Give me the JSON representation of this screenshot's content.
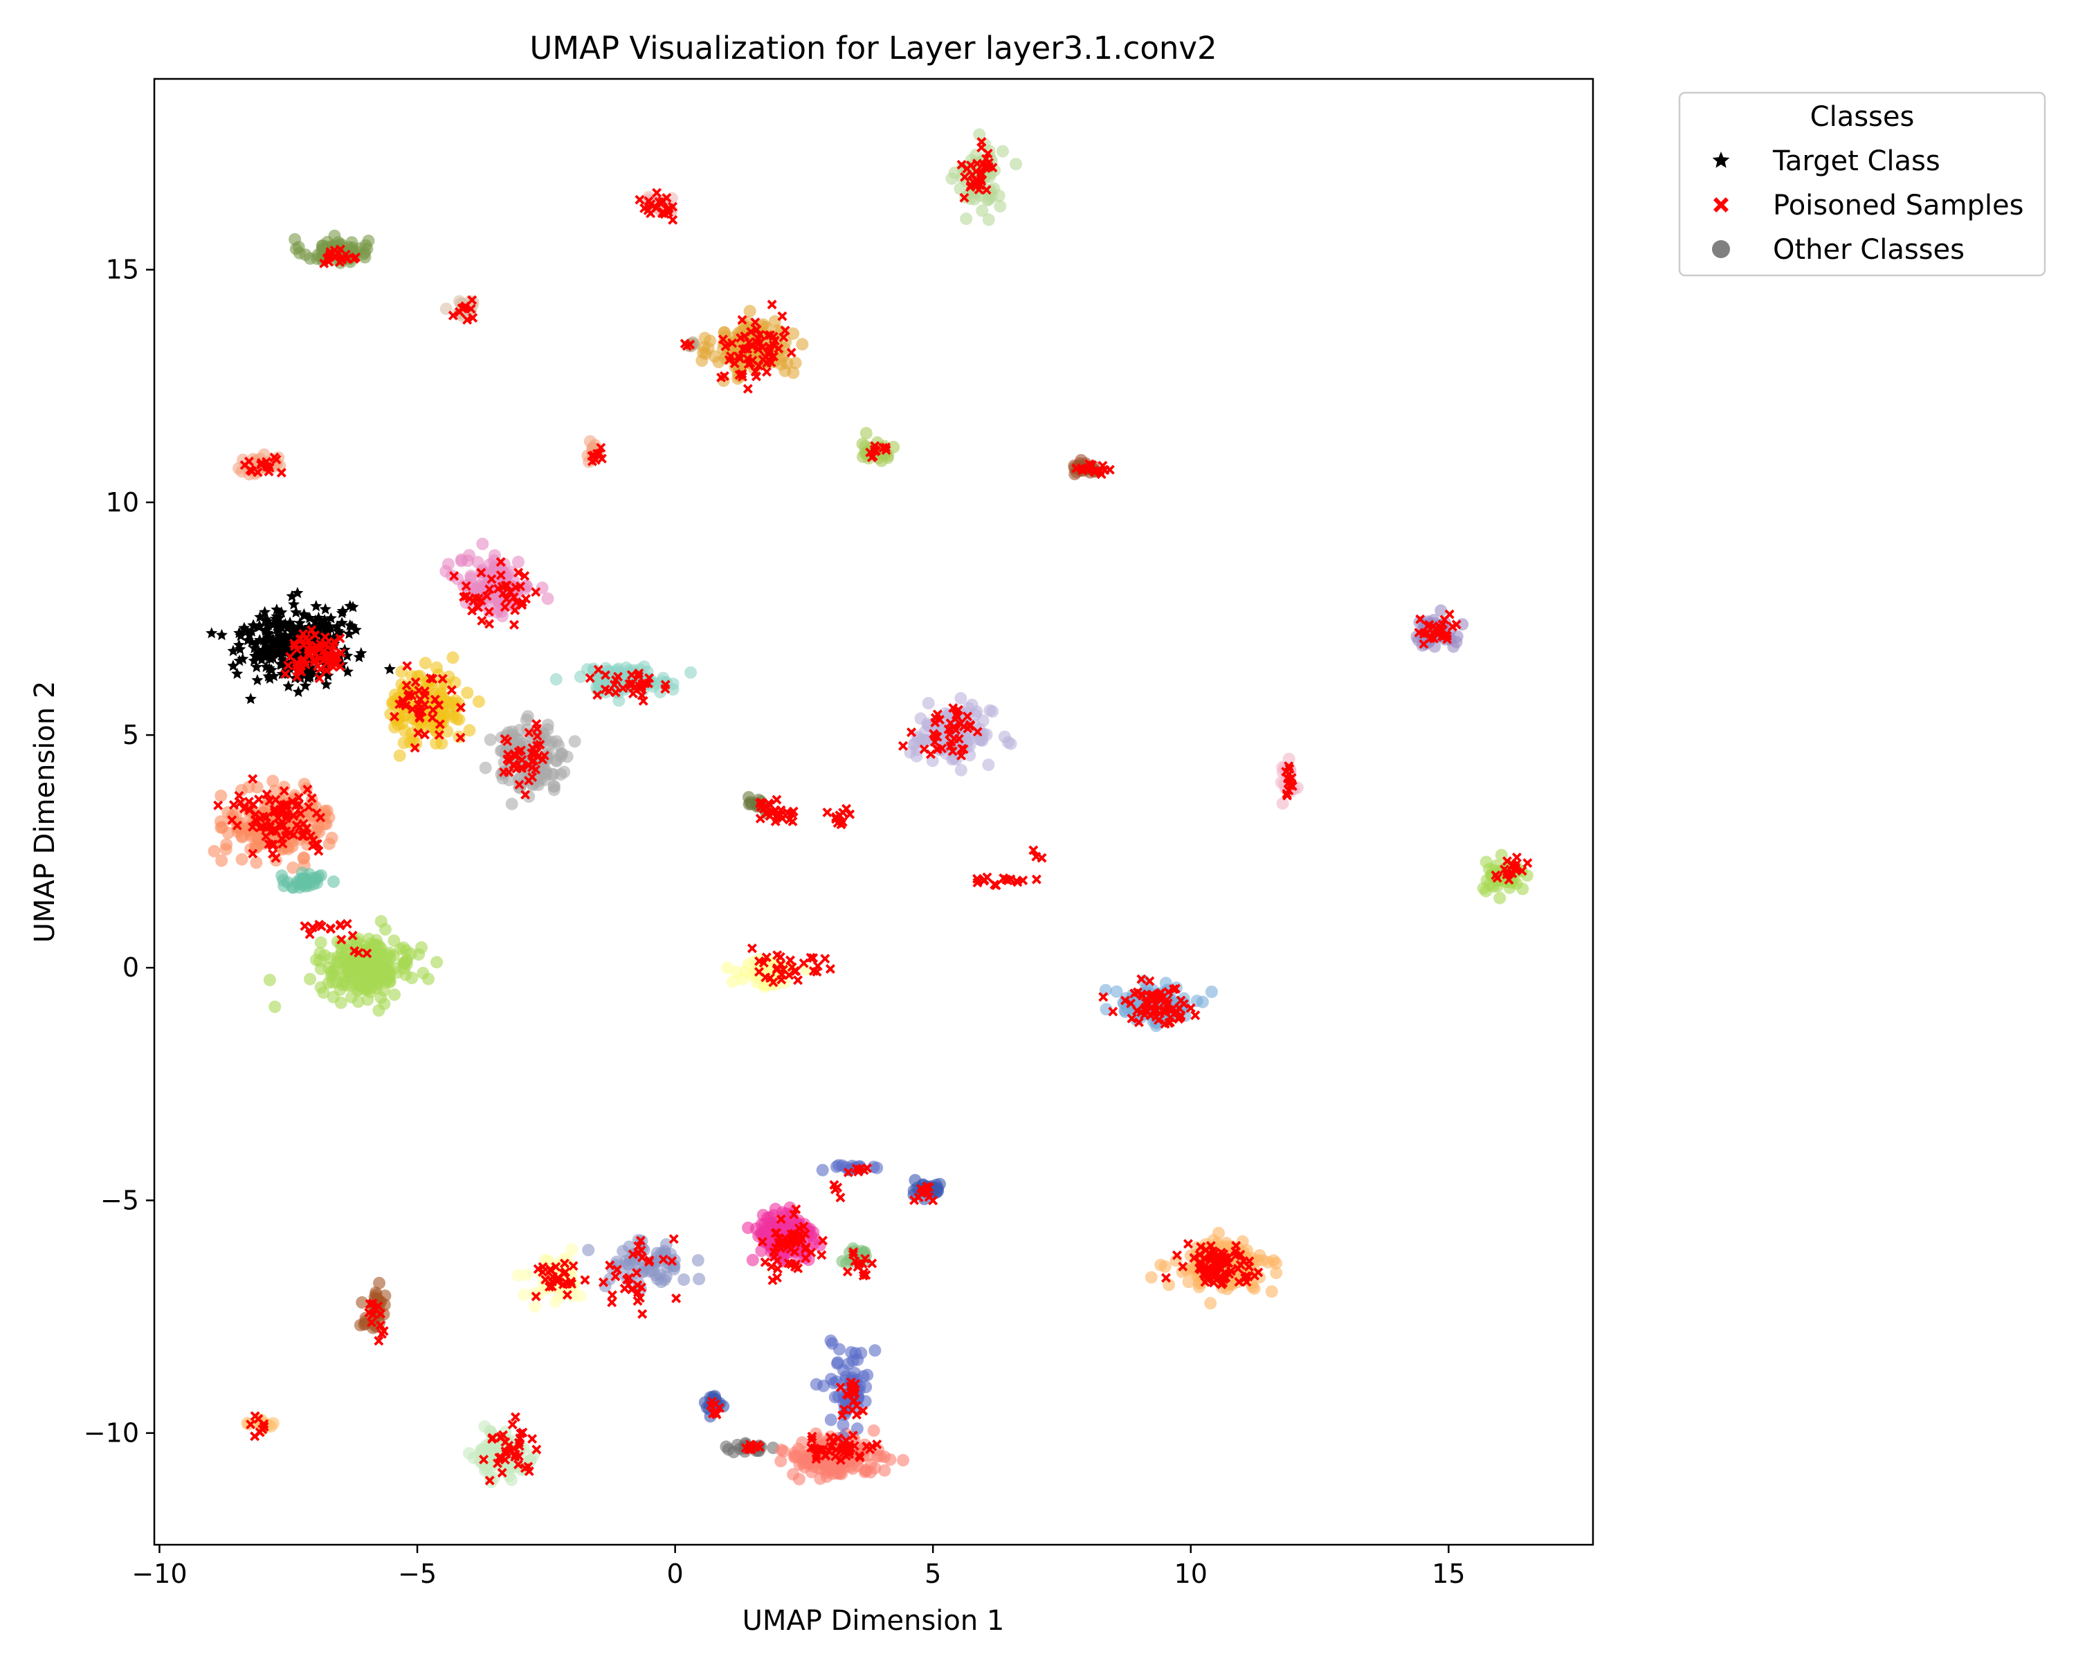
{
  "chart_data": {
    "type": "scatter",
    "title": "UMAP Visualization for Layer layer3.1.conv2",
    "xlabel": "UMAP Dimension 1",
    "ylabel": "UMAP Dimension 2",
    "xlim": [
      -10.1,
      17.8
    ],
    "ylim": [
      -12.4,
      19.1
    ],
    "x_ticks": [
      -10,
      -5,
      0,
      5,
      10,
      15
    ],
    "y_ticks": [
      -10,
      -5,
      0,
      5,
      10,
      15
    ],
    "x_tick_labels": [
      "−10",
      "−5",
      "0",
      "5",
      "10",
      "15"
    ],
    "y_tick_labels": [
      "−10",
      "−5",
      "0",
      "5",
      "10",
      "15"
    ],
    "grid": false,
    "legend": {
      "title": "Classes",
      "placement": "outside-top-right",
      "entries": [
        {
          "label": "Target Class",
          "marker": "star",
          "color": "#000000"
        },
        {
          "label": "Poisoned Samples",
          "marker": "x",
          "color": "#ff0000"
        },
        {
          "label": "Other Classes",
          "marker": "circle",
          "color": "#808080"
        }
      ]
    },
    "series": [
      {
        "name": "Target Class",
        "marker": "star",
        "color": "#000000",
        "clusters": [
          {
            "x": -7.4,
            "y": 6.95,
            "sx": 0.5,
            "sy": 0.4,
            "n": 320
          }
        ]
      },
      {
        "name": "Other Classes",
        "marker": "circle",
        "clusters": [
          {
            "x": -6.6,
            "y": 15.4,
            "sx": 0.32,
            "sy": 0.13,
            "n": 70,
            "color": "#7a9a4a"
          },
          {
            "x": -0.3,
            "y": 16.4,
            "sx": 0.18,
            "sy": 0.12,
            "n": 25,
            "color": "#f4b6b6"
          },
          {
            "x": 5.9,
            "y": 17.0,
            "sx": 0.22,
            "sy": 0.35,
            "n": 70,
            "color": "#b8d89a"
          },
          {
            "x": -4.1,
            "y": 14.2,
            "sx": 0.12,
            "sy": 0.1,
            "n": 15,
            "color": "#d8c0a8"
          },
          {
            "x": 1.5,
            "y": 13.3,
            "sx": 0.38,
            "sy": 0.3,
            "n": 140,
            "color": "#e3a83a"
          },
          {
            "x": 0.3,
            "y": 13.4,
            "sx": 0.05,
            "sy": 0.04,
            "n": 6,
            "color": "#b8a080"
          },
          {
            "x": -8.0,
            "y": 10.8,
            "sx": 0.25,
            "sy": 0.12,
            "n": 25,
            "color": "#f4a582"
          },
          {
            "x": -1.6,
            "y": 11.05,
            "sx": 0.1,
            "sy": 0.1,
            "n": 12,
            "color": "#f4a582"
          },
          {
            "x": 3.9,
            "y": 11.15,
            "sx": 0.18,
            "sy": 0.12,
            "n": 30,
            "color": "#a6cc58"
          },
          {
            "x": 8.0,
            "y": 10.75,
            "sx": 0.16,
            "sy": 0.08,
            "n": 20,
            "color": "#a0522d"
          },
          {
            "x": -3.5,
            "y": 8.2,
            "sx": 0.35,
            "sy": 0.3,
            "n": 120,
            "color": "#e78ac3"
          },
          {
            "x": -1.0,
            "y": 6.2,
            "sx": 0.45,
            "sy": 0.14,
            "n": 90,
            "color": "#8dd3c7"
          },
          {
            "x": -4.8,
            "y": 5.6,
            "sx": 0.35,
            "sy": 0.42,
            "n": 120,
            "color": "#f2c31a"
          },
          {
            "x": -2.8,
            "y": 4.5,
            "sx": 0.38,
            "sy": 0.35,
            "n": 130,
            "color": "#aaaaaa"
          },
          {
            "x": 5.4,
            "y": 5.0,
            "sx": 0.38,
            "sy": 0.28,
            "n": 120,
            "color": "#bcb4dc"
          },
          {
            "x": 14.7,
            "y": 7.2,
            "sx": 0.22,
            "sy": 0.2,
            "n": 50,
            "color": "#9b8cc4"
          },
          {
            "x": 11.9,
            "y": 4.0,
            "sx": 0.08,
            "sy": 0.25,
            "n": 20,
            "color": "#f4b6c8"
          },
          {
            "x": -7.7,
            "y": 3.1,
            "sx": 0.5,
            "sy": 0.35,
            "n": 180,
            "color": "#fc8d62"
          },
          {
            "x": -7.2,
            "y": 1.85,
            "sx": 0.22,
            "sy": 0.08,
            "n": 30,
            "color": "#66c2a5"
          },
          {
            "x": 1.6,
            "y": 3.5,
            "sx": 0.12,
            "sy": 0.1,
            "n": 14,
            "color": "#6a7a40"
          },
          {
            "x": 16.1,
            "y": 1.95,
            "sx": 0.22,
            "sy": 0.15,
            "n": 50,
            "color": "#a6d854"
          },
          {
            "x": -6.0,
            "y": 0.0,
            "sx": 0.45,
            "sy": 0.3,
            "n": 220,
            "color": "#a6d854"
          },
          {
            "x": 1.8,
            "y": -0.1,
            "sx": 0.3,
            "sy": 0.15,
            "n": 50,
            "color": "#ffff99"
          },
          {
            "x": 9.3,
            "y": -0.8,
            "sx": 0.35,
            "sy": 0.2,
            "n": 120,
            "color": "#7aadda"
          },
          {
            "x": 4.9,
            "y": -4.75,
            "sx": 0.2,
            "sy": 0.1,
            "n": 30,
            "color": "#3b58b0"
          },
          {
            "x": 3.5,
            "y": -4.3,
            "sx": 0.2,
            "sy": 0.05,
            "n": 15,
            "color": "#5a6cc8"
          },
          {
            "x": 2.1,
            "y": -5.8,
            "sx": 0.3,
            "sy": 0.3,
            "n": 140,
            "color": "#f032a0"
          },
          {
            "x": 3.5,
            "y": -6.2,
            "sx": 0.15,
            "sy": 0.12,
            "n": 18,
            "color": "#7fbf7b"
          },
          {
            "x": -0.6,
            "y": -6.4,
            "sx": 0.4,
            "sy": 0.25,
            "n": 60,
            "color": "#8c96c6"
          },
          {
            "x": -2.3,
            "y": -6.7,
            "sx": 0.3,
            "sy": 0.25,
            "n": 50,
            "color": "#ffffb3"
          },
          {
            "x": 10.6,
            "y": -6.4,
            "sx": 0.45,
            "sy": 0.25,
            "n": 150,
            "color": "#fdb462"
          },
          {
            "x": -5.8,
            "y": -7.4,
            "sx": 0.12,
            "sy": 0.22,
            "n": 30,
            "color": "#a65628"
          },
          {
            "x": -8.0,
            "y": -9.8,
            "sx": 0.12,
            "sy": 0.1,
            "n": 12,
            "color": "#fdbf6f"
          },
          {
            "x": -3.3,
            "y": -10.5,
            "sx": 0.3,
            "sy": 0.25,
            "n": 80,
            "color": "#c7e9c0"
          },
          {
            "x": 0.75,
            "y": -9.35,
            "sx": 0.08,
            "sy": 0.15,
            "n": 15,
            "color": "#3b58b0"
          },
          {
            "x": 1.5,
            "y": -10.3,
            "sx": 0.2,
            "sy": 0.05,
            "n": 20,
            "color": "#707070"
          },
          {
            "x": 3.0,
            "y": -10.5,
            "sx": 0.45,
            "sy": 0.2,
            "n": 150,
            "color": "#fb8072"
          },
          {
            "x": 3.4,
            "y": -9.0,
            "sx": 0.2,
            "sy": 0.5,
            "n": 60,
            "color": "#5a6cc8"
          }
        ]
      },
      {
        "name": "Poisoned Samples",
        "marker": "x",
        "color": "#ff0000",
        "clusters": [
          {
            "x": -6.6,
            "y": 15.3,
            "sx": 0.2,
            "sy": 0.1,
            "n": 20
          },
          {
            "x": -0.3,
            "y": 16.35,
            "sx": 0.18,
            "sy": 0.12,
            "n": 20
          },
          {
            "x": 5.9,
            "y": 17.1,
            "sx": 0.15,
            "sy": 0.3,
            "n": 30
          },
          {
            "x": -4.1,
            "y": 14.1,
            "sx": 0.1,
            "sy": 0.15,
            "n": 10
          },
          {
            "x": 1.5,
            "y": 13.2,
            "sx": 0.3,
            "sy": 0.35,
            "n": 60
          },
          {
            "x": 0.3,
            "y": 13.4,
            "sx": 0.04,
            "sy": 0.03,
            "n": 3
          },
          {
            "x": -8.0,
            "y": 10.8,
            "sx": 0.2,
            "sy": 0.1,
            "n": 15
          },
          {
            "x": -1.6,
            "y": 11.0,
            "sx": 0.08,
            "sy": 0.08,
            "n": 8
          },
          {
            "x": 3.9,
            "y": 11.1,
            "sx": 0.1,
            "sy": 0.1,
            "n": 10
          },
          {
            "x": 8.1,
            "y": 10.7,
            "sx": 0.15,
            "sy": 0.08,
            "n": 15
          },
          {
            "x": -3.5,
            "y": 8.0,
            "sx": 0.4,
            "sy": 0.3,
            "n": 40
          },
          {
            "x": -7.0,
            "y": 6.75,
            "sx": 0.3,
            "sy": 0.22,
            "n": 70
          },
          {
            "x": -0.9,
            "y": 6.1,
            "sx": 0.3,
            "sy": 0.15,
            "n": 30
          },
          {
            "x": -4.8,
            "y": 5.7,
            "sx": 0.3,
            "sy": 0.35,
            "n": 40
          },
          {
            "x": -2.9,
            "y": 4.5,
            "sx": 0.25,
            "sy": 0.3,
            "n": 40
          },
          {
            "x": 5.3,
            "y": 5.0,
            "sx": 0.3,
            "sy": 0.25,
            "n": 40
          },
          {
            "x": 14.8,
            "y": 7.2,
            "sx": 0.2,
            "sy": 0.15,
            "n": 25
          },
          {
            "x": 11.9,
            "y": 4.0,
            "sx": 0.06,
            "sy": 0.2,
            "n": 12
          },
          {
            "x": -7.6,
            "y": 3.2,
            "sx": 0.45,
            "sy": 0.35,
            "n": 90
          },
          {
            "x": -6.5,
            "y": 0.8,
            "sx": 0.4,
            "sy": 0.2,
            "n": 15
          },
          {
            "x": 1.9,
            "y": 3.35,
            "sx": 0.3,
            "sy": 0.1,
            "n": 25
          },
          {
            "x": 3.2,
            "y": 3.2,
            "sx": 0.1,
            "sy": 0.1,
            "n": 10
          },
          {
            "x": 6.5,
            "y": 1.9,
            "sx": 0.35,
            "sy": 0.08,
            "n": 15
          },
          {
            "x": 7.1,
            "y": 2.45,
            "sx": 0.1,
            "sy": 0.05,
            "n": 3
          },
          {
            "x": 16.2,
            "y": 2.1,
            "sx": 0.15,
            "sy": 0.12,
            "n": 15
          },
          {
            "x": 2.1,
            "y": 0.05,
            "sx": 0.4,
            "sy": 0.2,
            "n": 30
          },
          {
            "x": 9.3,
            "y": -0.8,
            "sx": 0.35,
            "sy": 0.2,
            "n": 70
          },
          {
            "x": 4.9,
            "y": -4.8,
            "sx": 0.15,
            "sy": 0.1,
            "n": 10
          },
          {
            "x": 3.7,
            "y": -4.35,
            "sx": 0.15,
            "sy": 0.04,
            "n": 6
          },
          {
            "x": 3.1,
            "y": -4.8,
            "sx": 0.05,
            "sy": 0.1,
            "n": 4
          },
          {
            "x": 2.2,
            "y": -5.9,
            "sx": 0.25,
            "sy": 0.3,
            "n": 50
          },
          {
            "x": 3.6,
            "y": -6.3,
            "sx": 0.12,
            "sy": 0.2,
            "n": 12
          },
          {
            "x": -0.7,
            "y": -6.5,
            "sx": 0.3,
            "sy": 0.4,
            "n": 30
          },
          {
            "x": -2.3,
            "y": -6.7,
            "sx": 0.25,
            "sy": 0.2,
            "n": 25
          },
          {
            "x": 10.6,
            "y": -6.4,
            "sx": 0.4,
            "sy": 0.22,
            "n": 80
          },
          {
            "x": -5.8,
            "y": -7.5,
            "sx": 0.08,
            "sy": 0.2,
            "n": 12
          },
          {
            "x": -8.0,
            "y": -9.8,
            "sx": 0.1,
            "sy": 0.1,
            "n": 8
          },
          {
            "x": -3.2,
            "y": -10.4,
            "sx": 0.25,
            "sy": 0.25,
            "n": 35
          },
          {
            "x": 0.8,
            "y": -9.5,
            "sx": 0.06,
            "sy": 0.1,
            "n": 8
          },
          {
            "x": 1.5,
            "y": -10.3,
            "sx": 0.15,
            "sy": 0.04,
            "n": 10
          },
          {
            "x": 3.1,
            "y": -10.35,
            "sx": 0.35,
            "sy": 0.1,
            "n": 40
          },
          {
            "x": 3.4,
            "y": -9.2,
            "sx": 0.15,
            "sy": 0.4,
            "n": 20
          }
        ]
      }
    ]
  }
}
